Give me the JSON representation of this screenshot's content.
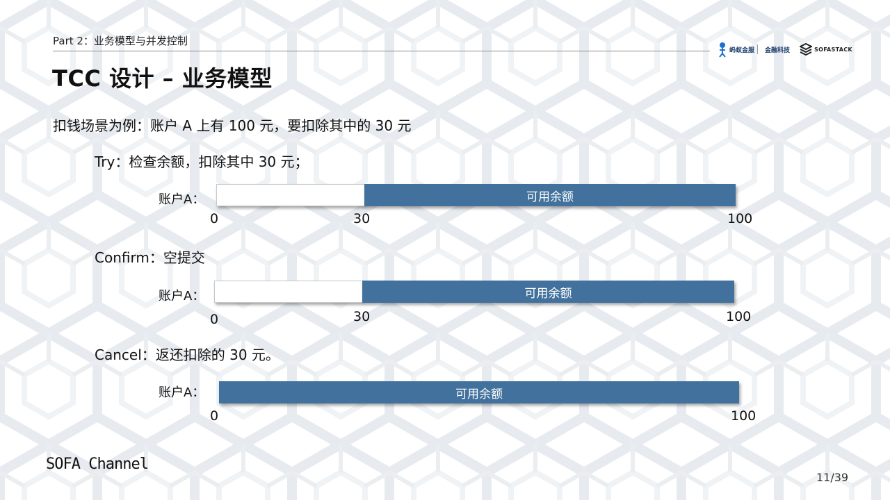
{
  "header": {
    "section": "Part 2：业务模型与并发控制",
    "logo_ant": "蚂蚁金服",
    "logo_fin": "金融科技",
    "logo_sofa": "SOFASTACK"
  },
  "title": "TCC 设计 – 业务模型",
  "description": "扣钱场景为例：账户 A 上有 100 元，要扣除其中的 30 元",
  "steps": [
    {
      "label": "Try：检查余额，扣除其中 30 元；",
      "account_label": "账户A：",
      "bar_label": "可用余额",
      "ticks": [
        "0",
        "30",
        "100"
      ]
    },
    {
      "label": "Confirm：空提交",
      "account_label": "账户A：",
      "bar_label": "可用余额",
      "ticks": [
        "0",
        "30",
        "100"
      ]
    },
    {
      "label": "Cancel：返还扣除的 30 元。",
      "account_label": "账户A：",
      "bar_label": "可用余额",
      "ticks": [
        "0",
        "100"
      ]
    }
  ],
  "footer": {
    "channel": "SOFA Channel",
    "page": "11/39"
  },
  "colors": {
    "bar_fill": "#41719c",
    "background_pattern": "#e2e8ee"
  },
  "icons": [
    "ant-mascot-icon",
    "sofastack-icon"
  ]
}
